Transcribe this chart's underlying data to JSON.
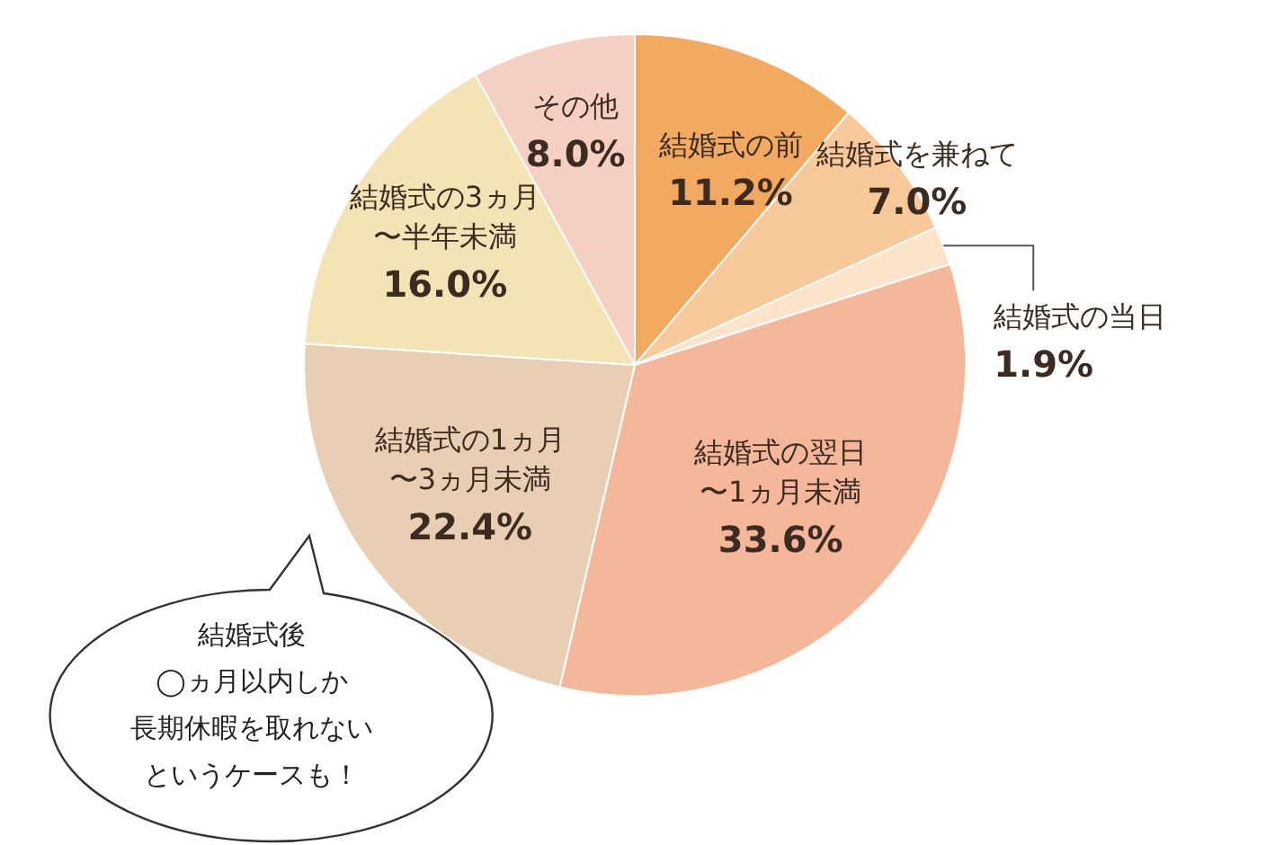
{
  "chart_data": {
    "type": "pie",
    "categories": [
      "結婚式の前",
      "結婚式を兼ねて",
      "結婚式の当日",
      "結婚式の翌日〜1ヵ月未満",
      "結婚式の1ヵ月〜3ヵ月未満",
      "結婚式の3ヵ月〜半年未満",
      "その他"
    ],
    "values": [
      11.2,
      7.0,
      1.9,
      33.6,
      22.4,
      16.0,
      8.0
    ],
    "value_labels": [
      "11.2%",
      "7.0%",
      "1.9%",
      "33.6%",
      "22.4%",
      "16.0%",
      "8.0%"
    ],
    "colors": [
      "#f2a960",
      "#f7c99b",
      "#fbe4c9",
      "#f4b79a",
      "#e8cfb4",
      "#f4e3b4",
      "#f6cfc3"
    ],
    "annotations": [
      "結婚式後◯ヵ月以内しか長期休暇を取れないというケースも！"
    ]
  }
}
